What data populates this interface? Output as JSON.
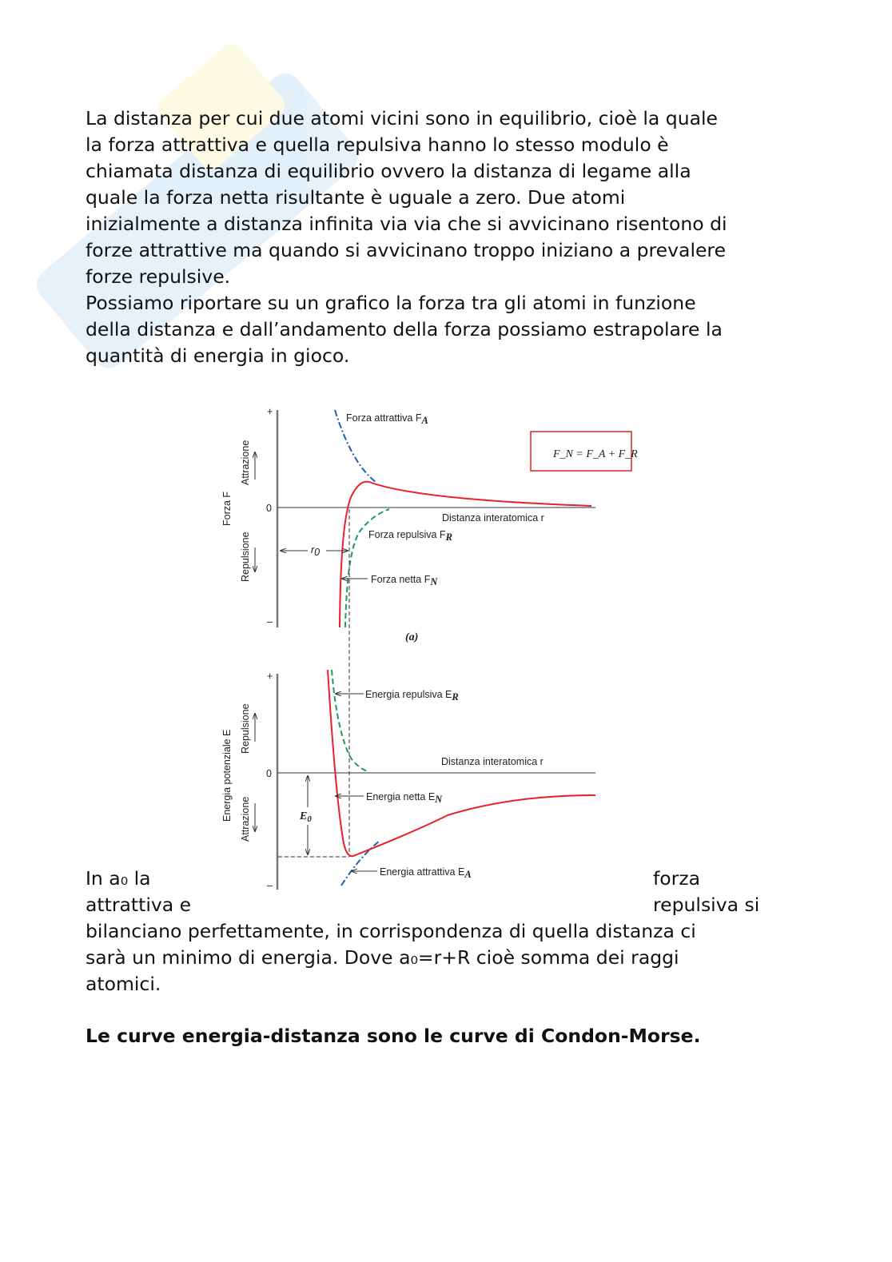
{
  "paragraph1": [
    "La distanza per cui due atomi vicini sono in equilibrio, cioè la quale",
    "la forza attrattiva e quella repulsiva hanno lo stesso modulo è",
    "chiamata distanza di equilibrio ovvero la distanza di legame alla",
    "quale la forza netta risultante è uguale a zero. Due atomi",
    "inizialmente a distanza infinita via via che si avvicinano risentono di",
    "forze attrattive ma quando si avvicinano troppo iniziano a prevalere",
    "forze repulsive."
  ],
  "paragraph2": [
    "Possiamo riportare su un grafico la forza tra gli atomi in funzione",
    "della distanza e dall’andamento della forza possiamo estrapolare la",
    "quantità di energia in gioco."
  ],
  "figure": {
    "force": {
      "y_axis_label": "Forza F",
      "attraction_label": "Attrazione",
      "repulsion_label": "Repulsione",
      "plus": "+",
      "zero": "0",
      "minus": "–",
      "x_axis_label": "Distanza interatomica r",
      "fa_label": "Forza attrattiva F",
      "fa_sub": "A",
      "fr_label": "Forza repulsiva F",
      "fr_sub": "R",
      "fn_label": "Forza netta F",
      "fn_sub": "N",
      "r0_label": "r",
      "r0_sub": "0",
      "formula": "F_N = F_A + F_R",
      "caption": "(a)",
      "colors": {
        "net": "#e8202a",
        "attractive": "#1f5fa8",
        "repulsive": "#1f9a5a",
        "formula_box": "#e02020"
      }
    },
    "energy": {
      "y_axis_label": "Energia potenziale E",
      "repulsion_label": "Repulsione",
      "attraction_label": "Attrazione",
      "plus": "+",
      "zero": "0",
      "minus": "–",
      "x_axis_label": "Distanza interatomica r",
      "er_label": "Energia repulsiva E",
      "er_sub": "R",
      "en_label": "Energia netta E",
      "en_sub": "N",
      "ea_label": "Energia attrattiva E",
      "ea_sub": "A",
      "e0_label": "E",
      "e0_sub": "0"
    }
  },
  "paragraph3": {
    "line1_left": "In a₀ la",
    "line1_right": "forza",
    "line2_left": "attrattiva e",
    "line2_right": "repulsiva si",
    "rest": [
      "bilanciano perfettamente, in corrispondenza di quella distanza ci",
      "sarà un minimo di energia. Dove a₀=r+R cioè somma dei raggi",
      "atomici."
    ]
  },
  "conclusion": "Le curve energia-distanza sono le curve di Condon-Morse."
}
